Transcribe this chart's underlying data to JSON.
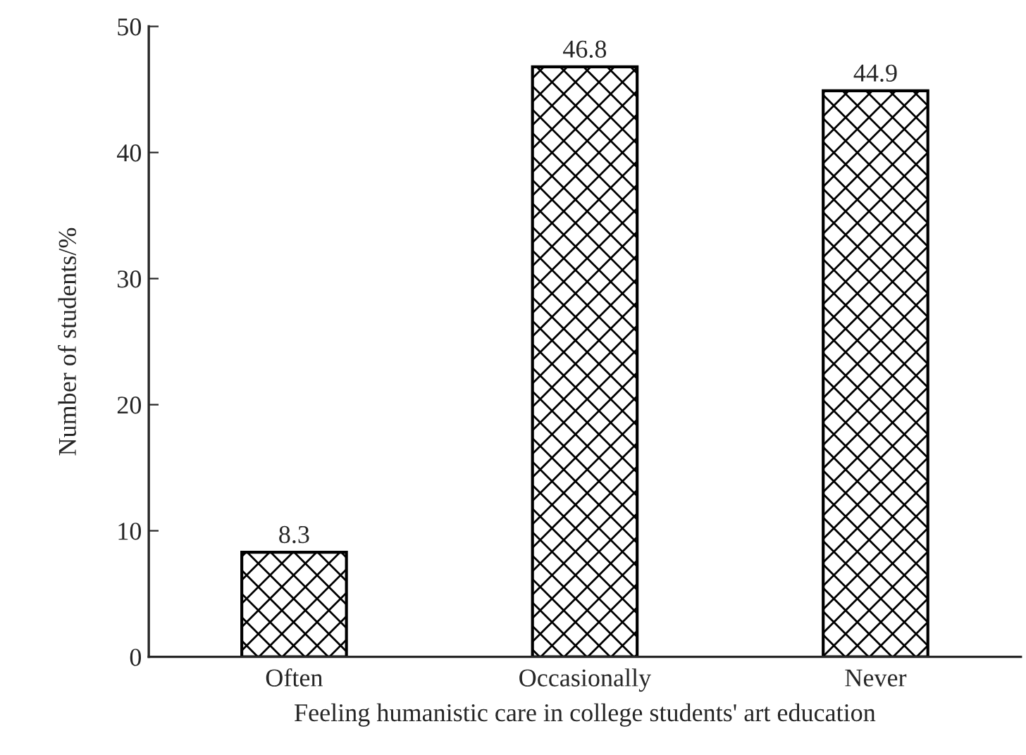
{
  "chart_data": {
    "type": "bar",
    "xlabel": "Feeling humanistic care in college students' art education",
    "ylabel": "Number of students/%",
    "categories": [
      "Often",
      "Occasionally",
      "Never"
    ],
    "values": [
      8.3,
      46.8,
      44.9
    ],
    "color": "#000000",
    "ylim": [
      0,
      50
    ],
    "yticks": [
      0,
      10,
      20,
      30,
      40,
      50
    ],
    "data_labels": true,
    "grid": false,
    "legend": false
  }
}
